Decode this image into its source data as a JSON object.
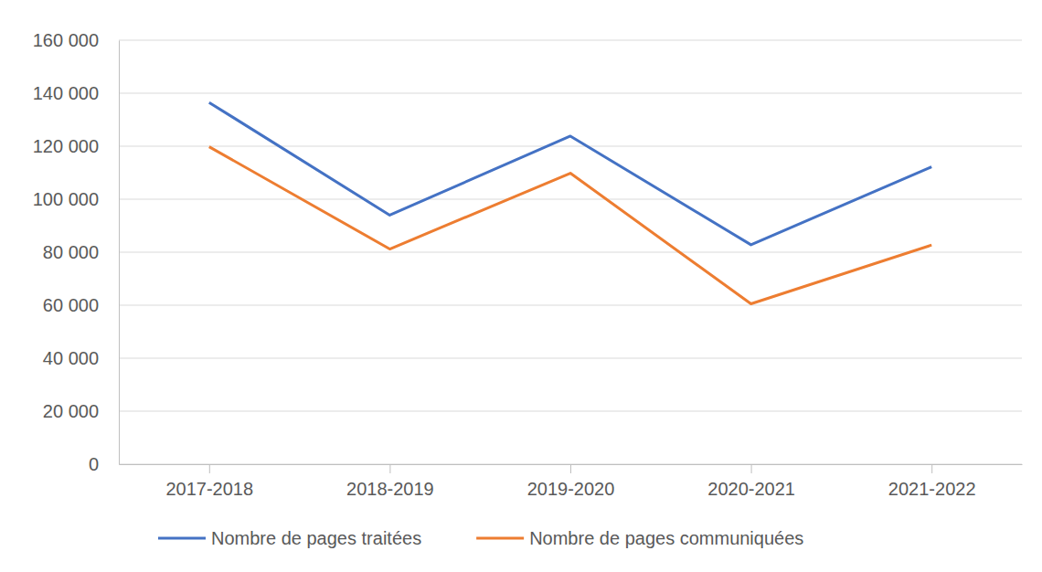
{
  "chart_data": {
    "type": "line",
    "categories": [
      "2017-2018",
      "2018-2019",
      "2019-2020",
      "2020-2021",
      "2021-2022"
    ],
    "series": [
      {
        "name": "Nombre de pages traitées",
        "color": "#4472c4",
        "values": [
          136500,
          94000,
          123800,
          82800,
          112200
        ]
      },
      {
        "name": "Nombre de pages communiquées",
        "color": "#ed7d31",
        "values": [
          119800,
          81200,
          109800,
          60500,
          82700
        ]
      }
    ],
    "ylim": [
      0,
      160000
    ],
    "yticks": [
      0,
      {
        "value": 20000,
        "label": "20 000"
      },
      {
        "value": 40000,
        "label": "40 000"
      },
      {
        "value": 60000,
        "label": "60 000"
      },
      {
        "value": 80000,
        "label": "80 000"
      },
      {
        "value": 100000,
        "label": "100 000"
      },
      {
        "value": 120000,
        "label": "120 000"
      },
      {
        "value": 140000,
        "label": "140 000"
      },
      {
        "value": 160000,
        "label": "160 000"
      }
    ],
    "grid": true,
    "legend": "bottom"
  }
}
